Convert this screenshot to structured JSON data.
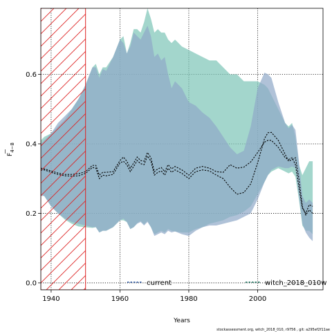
{
  "chart_data": {
    "type": "line",
    "xlabel": "Years",
    "ylabel_main": "F",
    "ylabel_sub": "4−8",
    "xlim": [
      1937,
      2019
    ],
    "ylim": [
      -0.02,
      0.79
    ],
    "xticks": [
      1940,
      1960,
      1980,
      2000
    ],
    "yticks": [
      0.0,
      0.2,
      0.4,
      0.6
    ],
    "grid": true,
    "legend_position": "bottom",
    "hatched_region": {
      "x": [
        1937,
        1950
      ],
      "color": "#dd2222"
    },
    "series": [
      {
        "name": "current",
        "color": "#1f4e9e",
        "band_color": "#8ea8c8",
        "x": [
          1937,
          1938,
          1940,
          1942,
          1944,
          1946,
          1948,
          1950,
          1952,
          1953,
          1954,
          1955,
          1956,
          1958,
          1960,
          1961,
          1962,
          1963,
          1964,
          1965,
          1966,
          1967,
          1968,
          1969,
          1970,
          1971,
          1972,
          1973,
          1974,
          1975,
          1976,
          1978,
          1980,
          1982,
          1984,
          1986,
          1988,
          1990,
          1992,
          1994,
          1996,
          1998,
          2000,
          2002,
          2003,
          2004,
          2006,
          2008,
          2009,
          2010,
          2011,
          2012,
          2013,
          2014,
          2015,
          2016
        ],
        "y": [
          0.325,
          0.325,
          0.318,
          0.312,
          0.308,
          0.307,
          0.308,
          0.315,
          0.332,
          0.33,
          0.3,
          0.31,
          0.308,
          0.312,
          0.345,
          0.35,
          0.34,
          0.32,
          0.335,
          0.352,
          0.343,
          0.34,
          0.365,
          0.35,
          0.31,
          0.318,
          0.322,
          0.31,
          0.33,
          0.318,
          0.325,
          0.315,
          0.3,
          0.32,
          0.325,
          0.322,
          0.31,
          0.3,
          0.275,
          0.255,
          0.26,
          0.285,
          0.345,
          0.415,
          0.432,
          0.433,
          0.41,
          0.37,
          0.35,
          0.355,
          0.36,
          0.3,
          0.22,
          0.195,
          0.21,
          0.2
        ],
        "lower": [
          0.25,
          0.25,
          0.22,
          0.2,
          0.185,
          0.175,
          0.17,
          0.165,
          0.16,
          0.16,
          0.145,
          0.15,
          0.15,
          0.16,
          0.18,
          0.185,
          0.175,
          0.155,
          0.16,
          0.17,
          0.175,
          0.165,
          0.175,
          0.16,
          0.135,
          0.14,
          0.145,
          0.14,
          0.15,
          0.145,
          0.148,
          0.14,
          0.135,
          0.15,
          0.16,
          0.165,
          0.165,
          0.17,
          0.175,
          0.18,
          0.19,
          0.2,
          0.24,
          0.29,
          0.31,
          0.325,
          0.335,
          0.33,
          0.33,
          0.335,
          0.33,
          0.25,
          0.17,
          0.145,
          0.13,
          0.12
        ],
        "upper": [
          0.4,
          0.41,
          0.43,
          0.46,
          0.48,
          0.5,
          0.53,
          0.57,
          0.62,
          0.62,
          0.59,
          0.615,
          0.61,
          0.65,
          0.7,
          0.69,
          0.66,
          0.68,
          0.72,
          0.71,
          0.7,
          0.72,
          0.74,
          0.71,
          0.65,
          0.66,
          0.64,
          0.65,
          0.6,
          0.56,
          0.58,
          0.56,
          0.52,
          0.51,
          0.49,
          0.475,
          0.45,
          0.42,
          0.39,
          0.37,
          0.38,
          0.45,
          0.56,
          0.605,
          0.6,
          0.59,
          0.52,
          0.46,
          0.445,
          0.455,
          0.44,
          0.35,
          0.25,
          0.23,
          0.24,
          0.23
        ]
      },
      {
        "name": "witch_2018_010w",
        "color": "#0e6b55",
        "band_color": "#7cc4b6",
        "x": [
          1937,
          1938,
          1940,
          1942,
          1944,
          1946,
          1948,
          1950,
          1952,
          1953,
          1954,
          1955,
          1956,
          1958,
          1960,
          1961,
          1962,
          1963,
          1964,
          1965,
          1966,
          1967,
          1968,
          1969,
          1970,
          1971,
          1972,
          1973,
          1974,
          1975,
          1976,
          1978,
          1980,
          1982,
          1984,
          1986,
          1988,
          1990,
          1992,
          1994,
          1996,
          1998,
          2000,
          2002,
          2003,
          2004,
          2006,
          2008,
          2009,
          2010,
          2011,
          2012,
          2013,
          2014,
          2015,
          2016
        ],
        "y": [
          0.33,
          0.328,
          0.322,
          0.316,
          0.312,
          0.312,
          0.314,
          0.32,
          0.338,
          0.338,
          0.31,
          0.318,
          0.318,
          0.32,
          0.352,
          0.362,
          0.35,
          0.33,
          0.345,
          0.362,
          0.352,
          0.35,
          0.375,
          0.36,
          0.32,
          0.328,
          0.332,
          0.32,
          0.34,
          0.328,
          0.335,
          0.325,
          0.31,
          0.33,
          0.335,
          0.33,
          0.32,
          0.318,
          0.34,
          0.33,
          0.333,
          0.348,
          0.375,
          0.405,
          0.41,
          0.41,
          0.39,
          0.36,
          0.355,
          0.36,
          0.34,
          0.275,
          0.215,
          0.2,
          0.225,
          0.22
        ],
        "lower": [
          0.255,
          0.25,
          0.22,
          0.2,
          0.182,
          0.17,
          0.162,
          0.16,
          0.158,
          0.16,
          0.145,
          0.15,
          0.15,
          0.16,
          0.18,
          0.18,
          0.175,
          0.155,
          0.16,
          0.172,
          0.178,
          0.168,
          0.178,
          0.16,
          0.14,
          0.145,
          0.15,
          0.145,
          0.155,
          0.15,
          0.148,
          0.145,
          0.145,
          0.155,
          0.16,
          0.17,
          0.175,
          0.18,
          0.19,
          0.195,
          0.205,
          0.22,
          0.255,
          0.29,
          0.31,
          0.32,
          0.33,
          0.32,
          0.315,
          0.32,
          0.305,
          0.24,
          0.165,
          0.15,
          0.15,
          0.14
        ],
        "upper": [
          0.41,
          0.42,
          0.43,
          0.45,
          0.47,
          0.5,
          0.53,
          0.57,
          0.62,
          0.63,
          0.6,
          0.62,
          0.62,
          0.65,
          0.7,
          0.71,
          0.66,
          0.69,
          0.73,
          0.73,
          0.72,
          0.75,
          0.79,
          0.76,
          0.72,
          0.73,
          0.72,
          0.72,
          0.7,
          0.69,
          0.7,
          0.68,
          0.67,
          0.66,
          0.65,
          0.64,
          0.64,
          0.62,
          0.6,
          0.6,
          0.58,
          0.58,
          0.58,
          0.57,
          0.56,
          0.54,
          0.5,
          0.46,
          0.45,
          0.46,
          0.42,
          0.34,
          0.31,
          0.33,
          0.35,
          0.35
        ]
      }
    ]
  },
  "footnote": "stockassessment.org, witch_2018_010, r9756 , git: a295ef2f11ae"
}
